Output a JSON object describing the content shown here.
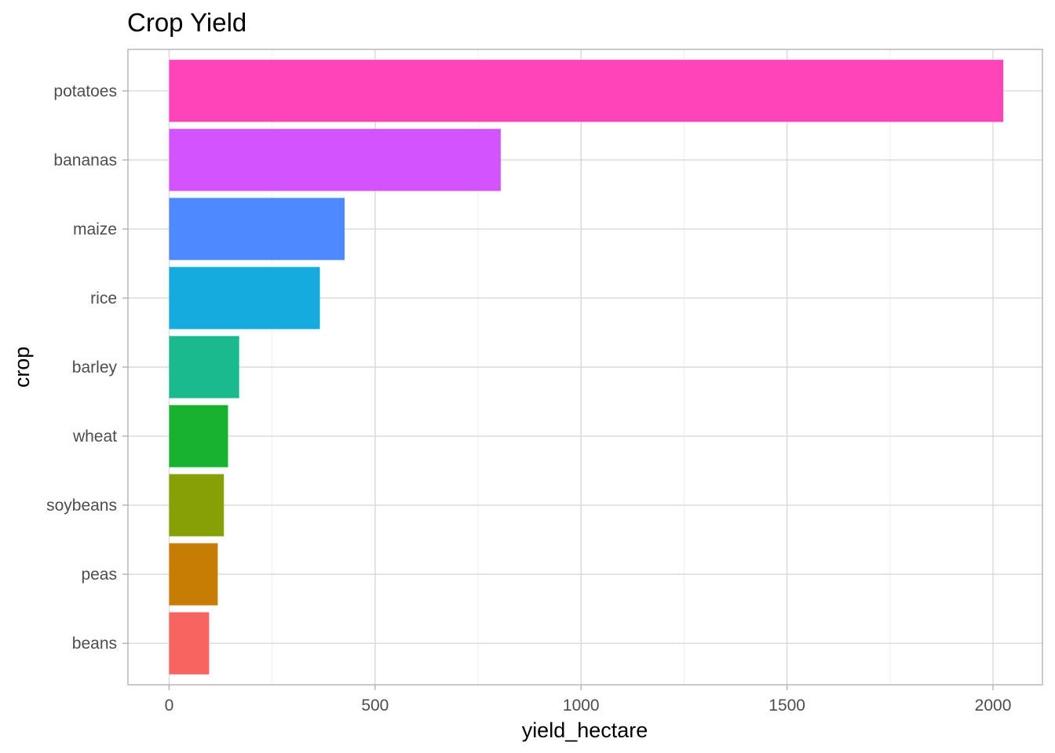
{
  "chart_data": {
    "type": "bar",
    "orientation": "horizontal",
    "title": "Crop Yield",
    "xlabel": "yield_hectare",
    "ylabel": "crop",
    "categories": [
      "beans",
      "peas",
      "soybeans",
      "wheat",
      "barley",
      "rice",
      "maize",
      "bananas",
      "potatoes"
    ],
    "values": [
      97,
      118,
      133,
      143,
      170,
      366,
      426,
      805,
      2025
    ],
    "colors": [
      "#F8645F",
      "#C77D04",
      "#86A005",
      "#18B230",
      "#1AB98E",
      "#15ABDE",
      "#4F89FF",
      "#D154FF",
      "#FF43B8"
    ],
    "xlim": [
      -100,
      2120
    ],
    "xticks": [
      0,
      500,
      1000,
      1500,
      2000
    ],
    "xtick_labels": [
      "0",
      "500",
      "1000",
      "1500",
      "2000"
    ],
    "grid": true,
    "legend": "none"
  }
}
